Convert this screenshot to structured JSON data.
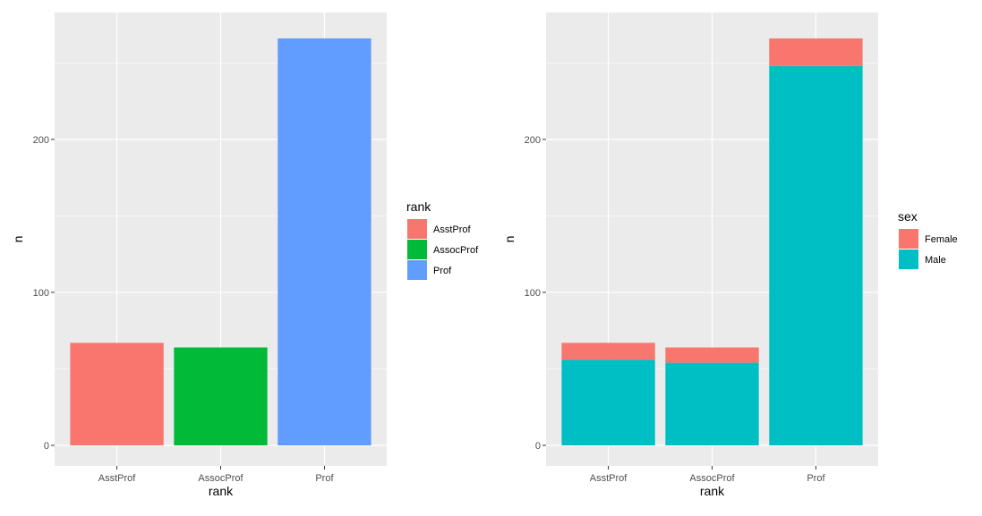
{
  "chart_data": [
    {
      "type": "bar",
      "categories": [
        "AsstProf",
        "AssocProf",
        "Prof"
      ],
      "values": [
        67,
        64,
        266
      ],
      "xlabel": "rank",
      "ylabel": "n",
      "ylim": [
        0,
        280
      ],
      "yticks": [
        0,
        100,
        200
      ],
      "grid": true,
      "legend": {
        "title": "rank",
        "position": "right",
        "entries": [
          {
            "label": "AsstProf",
            "color": "#F8766D"
          },
          {
            "label": "AssocProf",
            "color": "#00BA38"
          },
          {
            "label": "Prof",
            "color": "#619CFF"
          }
        ]
      },
      "colors": [
        "#F8766D",
        "#00BA38",
        "#619CFF"
      ]
    },
    {
      "type": "bar",
      "stacked": true,
      "categories": [
        "AsstProf",
        "AssocProf",
        "Prof"
      ],
      "series": [
        {
          "name": "Male",
          "values": [
            56,
            54,
            248
          ],
          "color": "#00BFC4"
        },
        {
          "name": "Female",
          "values": [
            11,
            10,
            18
          ],
          "color": "#F8766D"
        }
      ],
      "xlabel": "rank",
      "ylabel": "n",
      "ylim": [
        0,
        280
      ],
      "yticks": [
        0,
        100,
        200
      ],
      "grid": true,
      "legend": {
        "title": "sex",
        "position": "right",
        "entries": [
          {
            "label": "Female",
            "color": "#F8766D"
          },
          {
            "label": "Male",
            "color": "#00BFC4"
          }
        ]
      }
    }
  ],
  "style": {
    "panel_background": "#EBEBEB",
    "grid_color": "#FFFFFF"
  }
}
